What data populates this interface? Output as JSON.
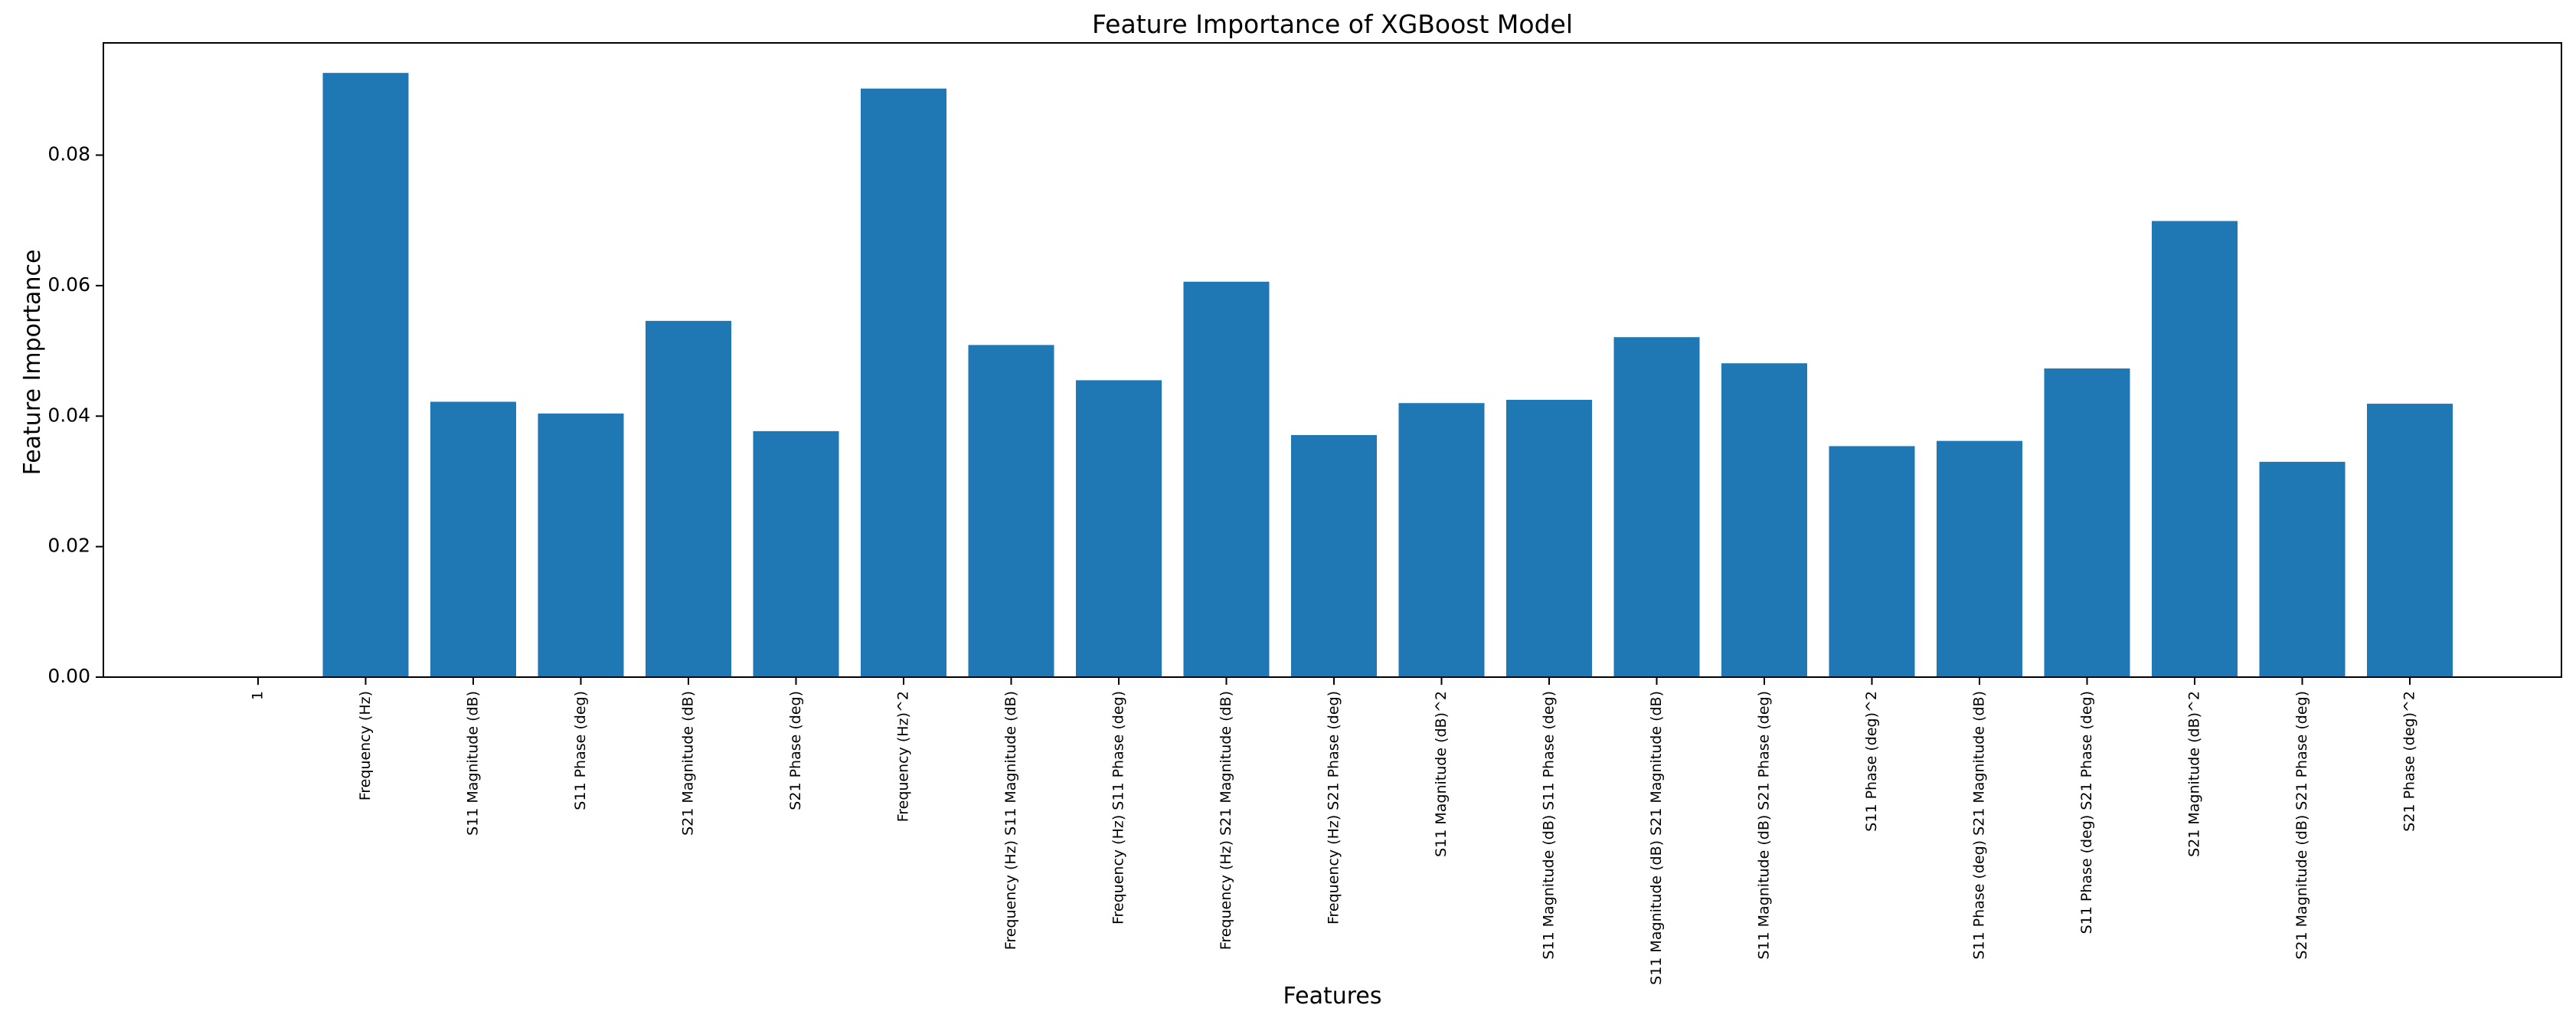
{
  "chart_data": {
    "type": "bar",
    "title": "Feature Importance of XGBoost Model",
    "xlabel": "Features",
    "ylabel": "Feature Importance",
    "ylim": [
      0,
      0.0972
    ],
    "yticks": [
      "0.00",
      "0.02",
      "0.04",
      "0.06",
      "0.08"
    ],
    "grid": false,
    "bar_color": "#1f77b4",
    "categories": [
      "1",
      "Frequency (Hz)",
      "S11 Magnitude (dB)",
      "S11 Phase (deg)",
      "S21 Magnitude (dB)",
      "S21 Phase (deg)",
      "Frequency (Hz)^2",
      "Frequency (Hz) S11 Magnitude (dB)",
      "Frequency (Hz) S11 Phase (deg)",
      "Frequency (Hz) S21 Magnitude (dB)",
      "Frequency (Hz) S21 Phase (deg)",
      "S11 Magnitude (dB)^2",
      "S11 Magnitude (dB) S11 Phase (deg)",
      "S11 Magnitude (dB) S21 Magnitude (dB)",
      "S11 Magnitude (dB) S21 Phase (deg)",
      "S11 Phase (deg)^2",
      "S11 Phase (deg) S21 Magnitude (dB)",
      "S11 Phase (deg) S21 Phase (deg)",
      "S21 Magnitude (dB)^2",
      "S21 Magnitude (dB) S21 Phase (deg)",
      "S21 Phase (deg)^2"
    ],
    "values": [
      0.0,
      0.0926,
      0.0422,
      0.0404,
      0.0546,
      0.0377,
      0.0902,
      0.0509,
      0.0455,
      0.0606,
      0.0371,
      0.042,
      0.0425,
      0.0521,
      0.0481,
      0.0354,
      0.0362,
      0.0473,
      0.0699,
      0.033,
      0.0419
    ]
  }
}
